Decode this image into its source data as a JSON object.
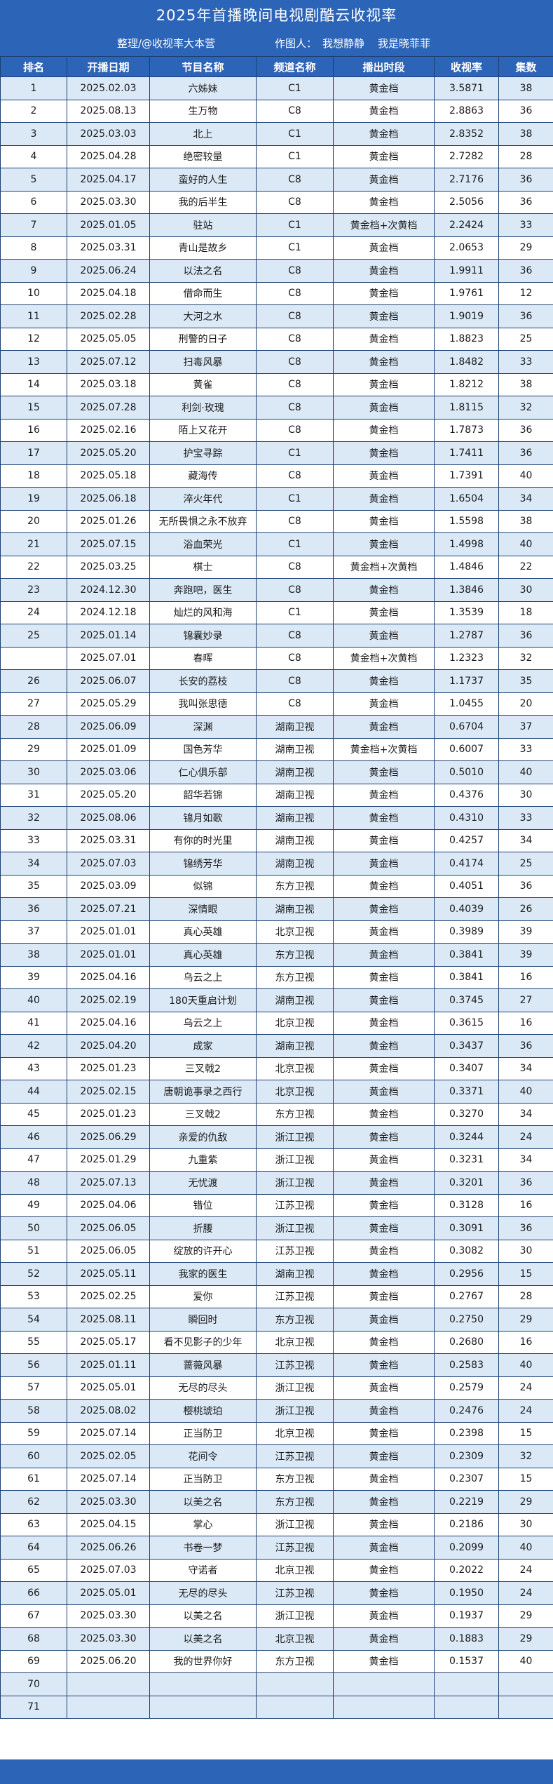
{
  "header": {
    "title": "2025年首播晚间电视剧酷云收视率",
    "credit_org": "整理/@收视率大本营",
    "credit_author_label": "作图人：",
    "credit_author_1": "我想静静",
    "credit_author_2": "我是晓菲菲"
  },
  "columns": [
    "排名",
    "开播日期",
    "节目名称",
    "频道名称",
    "播出时段",
    "收视率",
    "集数"
  ],
  "rows": [
    [
      "1",
      "2025.02.03",
      "六姊妹",
      "C1",
      "黄金档",
      "3.5871",
      "38"
    ],
    [
      "2",
      "2025.08.13",
      "生万物",
      "C8",
      "黄金档",
      "2.8863",
      "36"
    ],
    [
      "3",
      "2025.03.03",
      "北上",
      "C1",
      "黄金档",
      "2.8352",
      "38"
    ],
    [
      "4",
      "2025.04.28",
      "绝密较量",
      "C1",
      "黄金档",
      "2.7282",
      "28"
    ],
    [
      "5",
      "2025.04.17",
      "蛮好的人生",
      "C8",
      "黄金档",
      "2.7176",
      "36"
    ],
    [
      "6",
      "2025.03.30",
      "我的后半生",
      "C8",
      "黄金档",
      "2.5056",
      "36"
    ],
    [
      "7",
      "2025.01.05",
      "驻站",
      "C1",
      "黄金档+次黄档",
      "2.2424",
      "33"
    ],
    [
      "8",
      "2025.03.31",
      "青山是故乡",
      "C1",
      "黄金档",
      "2.0653",
      "29"
    ],
    [
      "9",
      "2025.06.24",
      "以法之名",
      "C8",
      "黄金档",
      "1.9911",
      "36"
    ],
    [
      "10",
      "2025.04.18",
      "借命而生",
      "C8",
      "黄金档",
      "1.9761",
      "12"
    ],
    [
      "11",
      "2025.02.28",
      "大河之水",
      "C8",
      "黄金档",
      "1.9019",
      "36"
    ],
    [
      "12",
      "2025.05.05",
      "刑警的日子",
      "C8",
      "黄金档",
      "1.8823",
      "25"
    ],
    [
      "13",
      "2025.07.12",
      "扫毒风暴",
      "C8",
      "黄金档",
      "1.8482",
      "33"
    ],
    [
      "14",
      "2025.03.18",
      "黄雀",
      "C8",
      "黄金档",
      "1.8212",
      "38"
    ],
    [
      "15",
      "2025.07.28",
      "利剑·玫瑰",
      "C8",
      "黄金档",
      "1.8115",
      "32"
    ],
    [
      "16",
      "2025.02.16",
      "陌上又花开",
      "C8",
      "黄金档",
      "1.7873",
      "36"
    ],
    [
      "17",
      "2025.05.20",
      "护宝寻踪",
      "C1",
      "黄金档",
      "1.7411",
      "36"
    ],
    [
      "18",
      "2025.05.18",
      "藏海传",
      "C8",
      "黄金档",
      "1.7391",
      "40"
    ],
    [
      "19",
      "2025.06.18",
      "淬火年代",
      "C1",
      "黄金档",
      "1.6504",
      "34"
    ],
    [
      "20",
      "2025.01.26",
      "无所畏惧之永不放弃",
      "C8",
      "黄金档",
      "1.5598",
      "38"
    ],
    [
      "21",
      "2025.07.15",
      "浴血荣光",
      "C1",
      "黄金档",
      "1.4998",
      "40"
    ],
    [
      "22",
      "2025.03.25",
      "棋士",
      "C8",
      "黄金档+次黄档",
      "1.4846",
      "22"
    ],
    [
      "23",
      "2024.12.30",
      "奔跑吧，医生",
      "C8",
      "黄金档",
      "1.3846",
      "30"
    ],
    [
      "24",
      "2024.12.18",
      "灿烂的风和海",
      "C1",
      "黄金档",
      "1.3539",
      "18"
    ],
    [
      "25",
      "2025.01.14",
      "锦囊妙录",
      "C8",
      "黄金档",
      "1.2787",
      "36"
    ],
    [
      "",
      "2025.07.01",
      "春晖",
      "C8",
      "黄金档+次黄档",
      "1.2323",
      "32"
    ],
    [
      "26",
      "2025.06.07",
      "长安的荔枝",
      "C8",
      "黄金档",
      "1.1737",
      "35"
    ],
    [
      "27",
      "2025.05.29",
      "我叫张思德",
      "C8",
      "黄金档",
      "1.0455",
      "20"
    ],
    [
      "28",
      "2025.06.09",
      "深渊",
      "湖南卫视",
      "黄金档",
      "0.6704",
      "37"
    ],
    [
      "29",
      "2025.01.09",
      "国色芳华",
      "湖南卫视",
      "黄金档+次黄档",
      "0.6007",
      "33"
    ],
    [
      "30",
      "2025.03.06",
      "仁心俱乐部",
      "湖南卫视",
      "黄金档",
      "0.5010",
      "40"
    ],
    [
      "31",
      "2025.05.20",
      "韶华若锦",
      "湖南卫视",
      "黄金档",
      "0.4376",
      "30"
    ],
    [
      "32",
      "2025.08.06",
      "锦月如歌",
      "湖南卫视",
      "黄金档",
      "0.4310",
      "33"
    ],
    [
      "33",
      "2025.03.31",
      "有你的时光里",
      "湖南卫视",
      "黄金档",
      "0.4257",
      "34"
    ],
    [
      "34",
      "2025.07.03",
      "锦绣芳华",
      "湖南卫视",
      "黄金档",
      "0.4174",
      "25"
    ],
    [
      "35",
      "2025.03.09",
      "似锦",
      "东方卫视",
      "黄金档",
      "0.4051",
      "36"
    ],
    [
      "36",
      "2025.07.21",
      "深情眼",
      "湖南卫视",
      "黄金档",
      "0.4039",
      "26"
    ],
    [
      "37",
      "2025.01.01",
      "真心英雄",
      "北京卫视",
      "黄金档",
      "0.3989",
      "39"
    ],
    [
      "38",
      "2025.01.01",
      "真心英雄",
      "东方卫视",
      "黄金档",
      "0.3841",
      "39"
    ],
    [
      "39",
      "2025.04.16",
      "乌云之上",
      "东方卫视",
      "黄金档",
      "0.3841",
      "16"
    ],
    [
      "40",
      "2025.02.19",
      "180天重启计划",
      "湖南卫视",
      "黄金档",
      "0.3745",
      "27"
    ],
    [
      "41",
      "2025.04.16",
      "乌云之上",
      "北京卫视",
      "黄金档",
      "0.3615",
      "16"
    ],
    [
      "42",
      "2025.04.20",
      "成家",
      "湖南卫视",
      "黄金档",
      "0.3437",
      "36"
    ],
    [
      "43",
      "2025.01.23",
      "三叉戟2",
      "北京卫视",
      "黄金档",
      "0.3407",
      "34"
    ],
    [
      "44",
      "2025.02.15",
      "唐朝诡事录之西行",
      "北京卫视",
      "黄金档",
      "0.3371",
      "40"
    ],
    [
      "45",
      "2025.01.23",
      "三叉戟2",
      "东方卫视",
      "黄金档",
      "0.3270",
      "34"
    ],
    [
      "46",
      "2025.06.29",
      "亲爱的仇敌",
      "浙江卫视",
      "黄金档",
      "0.3244",
      "24"
    ],
    [
      "47",
      "2025.01.29",
      "九重紫",
      "浙江卫视",
      "黄金档",
      "0.3231",
      "34"
    ],
    [
      "48",
      "2025.07.13",
      "无忧渡",
      "浙江卫视",
      "黄金档",
      "0.3201",
      "36"
    ],
    [
      "49",
      "2025.04.06",
      "错位",
      "江苏卫视",
      "黄金档",
      "0.3128",
      "16"
    ],
    [
      "50",
      "2025.06.05",
      "折腰",
      "浙江卫视",
      "黄金档",
      "0.3091",
      "36"
    ],
    [
      "51",
      "2025.06.05",
      "绽放的许开心",
      "江苏卫视",
      "黄金档",
      "0.3082",
      "30"
    ],
    [
      "52",
      "2025.05.11",
      "我家的医生",
      "湖南卫视",
      "黄金档",
      "0.2956",
      "15"
    ],
    [
      "53",
      "2025.02.25",
      "爱你",
      "江苏卫视",
      "黄金档",
      "0.2767",
      "28"
    ],
    [
      "54",
      "2025.08.11",
      "瞬回时",
      "东方卫视",
      "黄金档",
      "0.2750",
      "29"
    ],
    [
      "55",
      "2025.05.17",
      "看不见影子的少年",
      "北京卫视",
      "黄金档",
      "0.2680",
      "16"
    ],
    [
      "56",
      "2025.01.11",
      "蔷薇风暴",
      "江苏卫视",
      "黄金档",
      "0.2583",
      "40"
    ],
    [
      "57",
      "2025.05.01",
      "无尽的尽头",
      "浙江卫视",
      "黄金档",
      "0.2579",
      "24"
    ],
    [
      "58",
      "2025.08.02",
      "樱桃琥珀",
      "浙江卫视",
      "黄金档",
      "0.2476",
      "24"
    ],
    [
      "59",
      "2025.07.14",
      "正当防卫",
      "北京卫视",
      "黄金档",
      "0.2398",
      "15"
    ],
    [
      "60",
      "2025.02.05",
      "花间令",
      "江苏卫视",
      "黄金档",
      "0.2309",
      "32"
    ],
    [
      "61",
      "2025.07.14",
      "正当防卫",
      "东方卫视",
      "黄金档",
      "0.2307",
      "15"
    ],
    [
      "62",
      "2025.03.30",
      "以美之名",
      "东方卫视",
      "黄金档",
      "0.2219",
      "29"
    ],
    [
      "63",
      "2025.04.15",
      "掌心",
      "浙江卫视",
      "黄金档",
      "0.2186",
      "30"
    ],
    [
      "64",
      "2025.06.26",
      "书卷一梦",
      "江苏卫视",
      "黄金档",
      "0.2099",
      "40"
    ],
    [
      "65",
      "2025.07.03",
      "守诺者",
      "北京卫视",
      "黄金档",
      "0.2022",
      "24"
    ],
    [
      "66",
      "2025.05.01",
      "无尽的尽头",
      "江苏卫视",
      "黄金档",
      "0.1950",
      "24"
    ],
    [
      "67",
      "2025.03.30",
      "以美之名",
      "浙江卫视",
      "黄金档",
      "0.1937",
      "29"
    ],
    [
      "68",
      "2025.03.30",
      "以美之名",
      "北京卫视",
      "黄金档",
      "0.1883",
      "29"
    ],
    [
      "69",
      "2025.06.20",
      "我的世界你好",
      "东方卫视",
      "黄金档",
      "0.1537",
      "40"
    ],
    [
      "70",
      "",
      "",
      "",
      "",
      "",
      ""
    ],
    [
      "71",
      "",
      "",
      "",
      "",
      "",
      ""
    ]
  ],
  "colors": {
    "header_bg": "#2c64b8",
    "row_odd": "#dbe9f7",
    "row_even": "#ffffff",
    "border": "#1c3f73"
  }
}
